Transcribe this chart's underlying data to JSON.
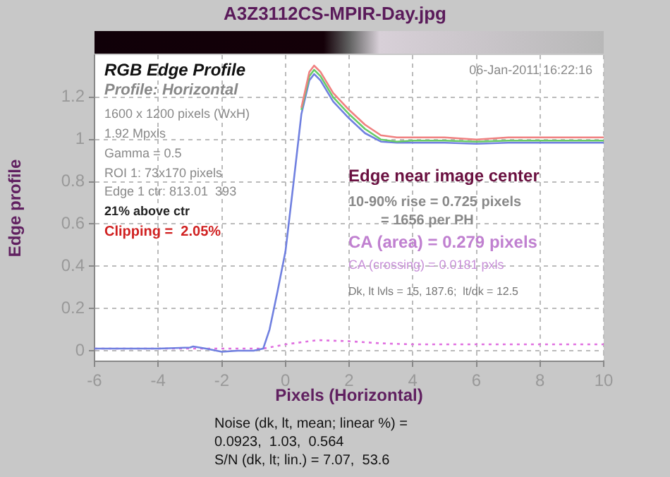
{
  "chart_data": {
    "type": "line",
    "title": "A3Z3112CS-MPIR-Day.jpg",
    "xlabel": "Pixels (Horizontal)",
    "ylabel": "Edge profile",
    "xlim": [
      -6,
      10
    ],
    "xticks": [
      -6,
      -4,
      -2,
      0,
      2,
      4,
      6,
      8,
      10
    ],
    "ylim": [
      -0.05,
      1.4
    ],
    "yticks": [
      0,
      0.2,
      0.4,
      0.6,
      0.8,
      1,
      1.2
    ],
    "grid": true,
    "legend": false,
    "marker": "none",
    "series": [
      {
        "color": "#f08080",
        "x": [
          0.5,
          0.75,
          0.9,
          1.1,
          1.5,
          2,
          2.5,
          3,
          3.5,
          4,
          5,
          6,
          7,
          8,
          9,
          10
        ],
        "values": [
          1.15,
          1.32,
          1.35,
          1.32,
          1.22,
          1.14,
          1.07,
          1.02,
          1.01,
          1.01,
          1.01,
          1.0,
          1.01,
          1.01,
          1.01,
          1.01
        ]
      },
      {
        "color": "#66cc66",
        "x": [
          0.5,
          0.75,
          0.9,
          1.1,
          1.5,
          2,
          2.5,
          3,
          3.5,
          4,
          5,
          6,
          7,
          8,
          9,
          10
        ],
        "values": [
          1.14,
          1.3,
          1.33,
          1.3,
          1.2,
          1.12,
          1.05,
          1.0,
          0.99,
          0.995,
          0.995,
          0.99,
          0.995,
          0.995,
          0.995,
          0.995
        ]
      },
      {
        "color": "#7080e0",
        "x": [
          -6,
          -5,
          -4,
          -3,
          -2.9,
          -2.5,
          -2,
          -1.5,
          -1,
          -0.7,
          -0.5,
          -0.25,
          0,
          0.25,
          0.5,
          0.75,
          0.9,
          1.1,
          1.5,
          2,
          2.5,
          3,
          3.5,
          4,
          5,
          6,
          7,
          8,
          9,
          10
        ],
        "values": [
          0.01,
          0.01,
          0.01,
          0.015,
          0.02,
          0.01,
          -0.005,
          0,
          0,
          0.01,
          0.1,
          0.28,
          0.47,
          0.79,
          1.12,
          1.28,
          1.31,
          1.28,
          1.18,
          1.1,
          1.03,
          0.99,
          0.985,
          0.985,
          0.985,
          0.98,
          0.985,
          0.985,
          0.985,
          0.985
        ]
      },
      {
        "color": "#e070e0",
        "line_style": "dotted",
        "x": [
          -6,
          -4,
          -2,
          -0.7,
          0,
          1,
          2,
          3,
          4,
          6,
          8,
          10
        ],
        "values": [
          0.01,
          0.01,
          0.01,
          0.01,
          0.03,
          0.05,
          0.045,
          0.035,
          0.03,
          0.03,
          0.03,
          0.03
        ]
      }
    ],
    "annotations": [
      "RGB Edge Profile",
      "06-Jan-2011 16:22:16",
      "Profile: Horizontal",
      "1600 x 1200 pixels (WxH)",
      "1.92 Mpxls",
      "Gamma = 0.5",
      "ROI 1: 73x170 pixels",
      "Edge 1 ctr: 813.01  393",
      "21% above ctr",
      "Clipping =  2.05%",
      "Edge near image center",
      "10-90% rise = 0.725 pixels",
      "= 1656 per PH",
      "CA (area) = 0.279 pixels",
      "CA (crossing) = 0.0181 pxls",
      "Dk, lt lvls = 15, 187.6;  lt/dk = 12.5",
      "Noise (dk, lt, mean; linear %) =",
      "0.0923,  1.03,  0.564",
      "S/N (dk, lt; lin.) = 7.07,  53.6"
    ]
  }
}
